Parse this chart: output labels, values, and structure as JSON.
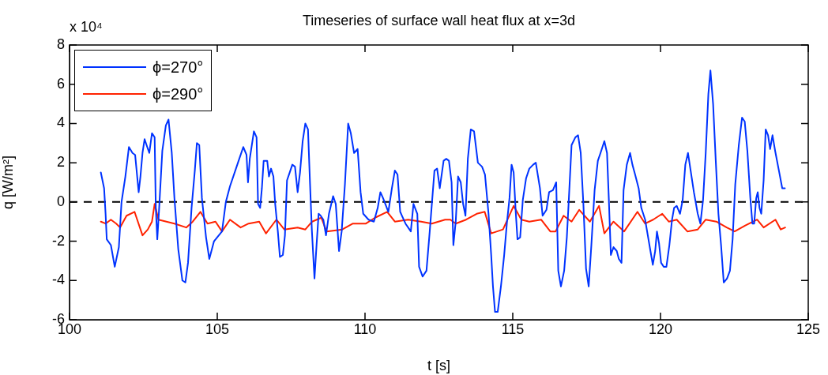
{
  "chart_data": {
    "type": "line",
    "title": "Timeseries of surface wall heat flux at x=3d",
    "xlabel": "t [s]",
    "ylabel": "q [W/m²]",
    "annotations": [
      "x 10⁴"
    ],
    "xlim": [
      100,
      125
    ],
    "xticks": [
      100,
      105,
      110,
      115,
      120,
      125
    ],
    "ylim": [
      -6,
      8
    ],
    "yticks": [
      -6,
      -4,
      -2,
      0,
      2,
      4,
      6,
      8
    ],
    "legend": "top left",
    "line_style": "solid",
    "marker": "none",
    "ref_lines": [
      {
        "axis": "y",
        "value": 0,
        "color": "#000000",
        "line_style": "dashed"
      }
    ],
    "series": [
      {
        "name": "ϕ=270°",
        "color": "#0033ff",
        "x": [
          101.06,
          101.17,
          101.22,
          101.26,
          101.4,
          101.53,
          101.67,
          101.76,
          101.89,
          102.01,
          102.13,
          102.22,
          102.34,
          102.4,
          102.47,
          102.54,
          102.63,
          102.7,
          102.79,
          102.88,
          102.92,
          102.97,
          103.03,
          103.14,
          103.26,
          103.35,
          103.46,
          103.55,
          103.68,
          103.82,
          103.92,
          104.01,
          104.13,
          104.24,
          104.31,
          104.39,
          104.48,
          104.62,
          104.73,
          104.89,
          105.16,
          105.29,
          105.43,
          105.7,
          105.88,
          105.99,
          106.04,
          106.1,
          106.24,
          106.33,
          106.38,
          106.45,
          106.51,
          106.57,
          106.69,
          106.75,
          106.82,
          106.9,
          106.96,
          107.05,
          107.12,
          107.22,
          107.29,
          107.36,
          107.45,
          107.54,
          107.63,
          107.72,
          107.8,
          107.89,
          107.98,
          108.07,
          108.14,
          108.2,
          108.29,
          108.36,
          108.43,
          108.5,
          108.59,
          108.68,
          108.78,
          108.92,
          109.01,
          109.07,
          109.12,
          109.21,
          109.32,
          109.43,
          109.52,
          109.63,
          109.75,
          109.85,
          109.94,
          110.12,
          110.3,
          110.43,
          110.52,
          110.61,
          110.79,
          110.91,
          111.01,
          111.1,
          111.19,
          111.37,
          111.55,
          111.64,
          111.77,
          111.83,
          111.95,
          112.08,
          112.19,
          112.35,
          112.44,
          112.53,
          112.66,
          112.75,
          112.84,
          112.93,
          112.99,
          113.07,
          113.15,
          113.24,
          113.32,
          113.4,
          113.48,
          113.58,
          113.69,
          113.82,
          113.96,
          114.06,
          114.18,
          114.27,
          114.33,
          114.4,
          114.49,
          114.6,
          114.71,
          114.8,
          114.89,
          114.96,
          115.03,
          115.1,
          115.16,
          115.25,
          115.34,
          115.45,
          115.56,
          115.69,
          115.78,
          115.92,
          116.01,
          116.14,
          116.23,
          116.36,
          116.47,
          116.54,
          116.63,
          116.74,
          116.83,
          116.9,
          116.99,
          117.12,
          117.21,
          117.3,
          117.39,
          117.48,
          117.57,
          117.66,
          117.77,
          117.88,
          117.97,
          118.1,
          118.19,
          118.25,
          118.32,
          118.41,
          118.52,
          118.59,
          118.68,
          118.75,
          118.86,
          118.97,
          119.05,
          119.14,
          119.26,
          119.35,
          119.48,
          119.57,
          119.66,
          119.74,
          119.82,
          119.88,
          119.95,
          120.02,
          120.11,
          120.2,
          120.3,
          120.39,
          120.46,
          120.55,
          120.66,
          120.75,
          120.84,
          120.93,
          121.01,
          121.13,
          121.26,
          121.35,
          121.44,
          121.53,
          121.62,
          121.69,
          121.78,
          121.87,
          121.96,
          122.05,
          122.14,
          122.25,
          122.35,
          122.44,
          122.53,
          122.65,
          122.76,
          122.85,
          122.94,
          123.04,
          123.11,
          123.17,
          123.24,
          123.29,
          123.35,
          123.41,
          123.49,
          123.56,
          123.64,
          123.71,
          123.79,
          123.88,
          124.02,
          124.12,
          124.21
        ],
        "values": [
          1.5,
          0.7,
          -0.6,
          -1.9,
          -2.2,
          -3.3,
          -2.3,
          0,
          1.3,
          2.8,
          2.5,
          2.4,
          0.5,
          1.3,
          2.5,
          3.2,
          2.8,
          2.5,
          3.5,
          3.3,
          -0.3,
          -1.9,
          -0.4,
          2.6,
          3.9,
          4.2,
          2.5,
          0.2,
          -2.4,
          -4.0,
          -4.1,
          -3.1,
          -0.3,
          1.6,
          3.0,
          2.9,
          0.2,
          -1.8,
          -2.9,
          -2.0,
          -1.5,
          0,
          0.8,
          2.0,
          2.8,
          2.4,
          1.0,
          2.2,
          3.6,
          3.3,
          -0.1,
          -0.3,
          0.7,
          2.1,
          2.1,
          1.3,
          1.7,
          1.3,
          -0.1,
          -1.5,
          -2.8,
          -2.7,
          -1.7,
          1.1,
          1.5,
          1.9,
          1.8,
          0.5,
          1.5,
          3.1,
          4.0,
          3.7,
          0.9,
          -1.4,
          -3.9,
          -2.2,
          -0.6,
          -0.7,
          -0.9,
          -1.7,
          -0.6,
          0.3,
          -0.1,
          -1.4,
          -2.5,
          -1.5,
          0.9,
          4.0,
          3.5,
          2.5,
          2.7,
          0.5,
          -0.6,
          -0.9,
          -1.0,
          -0.3,
          0.5,
          0.2,
          -0.5,
          0.7,
          1.6,
          1.4,
          -0.5,
          -1.1,
          -1.5,
          -0.1,
          -0.6,
          -3.3,
          -3.8,
          -3.5,
          -1.5,
          1.6,
          1.7,
          0.7,
          2.1,
          2.2,
          2.1,
          1.0,
          -2.2,
          -1.0,
          1.3,
          1.0,
          -0.1,
          -0.7,
          2.2,
          3.7,
          3.6,
          2.0,
          1.8,
          1.4,
          -0.6,
          -2.7,
          -4.3,
          -5.6,
          -5.6,
          -4.3,
          -2.7,
          -1.1,
          0.2,
          1.9,
          1.5,
          -0.5,
          -1.9,
          -1.8,
          0.1,
          1.2,
          1.7,
          1.9,
          2.0,
          0.7,
          -0.7,
          -0.4,
          0.5,
          0.6,
          1.0,
          -3.5,
          -4.3,
          -3.5,
          -1.8,
          0.2,
          2.9,
          3.3,
          3.4,
          2.5,
          -0.1,
          -3.4,
          -4.3,
          -2.2,
          0.6,
          2.1,
          2.5,
          3.1,
          2.5,
          0.2,
          -2.7,
          -2.3,
          -2.5,
          -2.9,
          -3.1,
          0.6,
          1.9,
          2.5,
          1.9,
          1.4,
          0.7,
          -0.3,
          -0.9,
          -1.7,
          -2.5,
          -3.2,
          -2.5,
          -1.5,
          -2.1,
          -3.1,
          -3.3,
          -3.3,
          -2.2,
          -0.9,
          -0.3,
          -0.2,
          -0.6,
          0.1,
          1.9,
          2.5,
          1.7,
          0.5,
          -0.6,
          -1.1,
          0.1,
          2.5,
          5.5,
          6.7,
          5.0,
          2.1,
          -0.6,
          -2.2,
          -4.1,
          -3.9,
          -3.5,
          -1.9,
          0.9,
          2.9,
          4.3,
          4.1,
          2.6,
          0.2,
          -1.1,
          -1.1,
          0.2,
          0.5,
          -0.3,
          -0.6,
          1.1,
          3.7,
          3.4,
          2.7,
          3.4,
          2.6,
          1.5,
          0.7,
          0.7
        ]
      },
      {
        "name": "ϕ=290°",
        "color": "#ff2200",
        "x": [
          101.06,
          101.22,
          101.4,
          101.58,
          101.71,
          101.93,
          102.2,
          102.47,
          102.65,
          102.79,
          102.88,
          103.01,
          103.28,
          103.55,
          103.95,
          104.17,
          104.43,
          104.67,
          104.94,
          105.16,
          105.43,
          105.79,
          106.06,
          106.42,
          106.65,
          107.0,
          107.27,
          107.72,
          107.98,
          108.21,
          108.52,
          108.7,
          109.23,
          109.59,
          110.03,
          110.34,
          110.75,
          111.01,
          111.46,
          111.9,
          112.26,
          112.71,
          112.89,
          113.07,
          113.42,
          113.78,
          114.05,
          114.27,
          114.67,
          115.03,
          115.29,
          115.56,
          115.96,
          116.27,
          116.45,
          116.72,
          116.99,
          117.25,
          117.61,
          117.92,
          118.1,
          118.41,
          118.77,
          119.22,
          119.48,
          119.75,
          120.06,
          120.28,
          120.55,
          120.91,
          121.26,
          121.53,
          121.89,
          122.24,
          122.51,
          122.87,
          123.27,
          123.49,
          123.89,
          124.07,
          124.22
        ],
        "values": [
          -1.0,
          -1.1,
          -0.9,
          -1.1,
          -1.3,
          -0.7,
          -0.5,
          -1.7,
          -1.4,
          -1.0,
          -0.1,
          -0.9,
          -1.0,
          -1.1,
          -1.3,
          -1.0,
          -0.5,
          -1.1,
          -1.0,
          -1.5,
          -0.9,
          -1.3,
          -1.1,
          -1.0,
          -1.6,
          -0.9,
          -1.4,
          -1.3,
          -1.4,
          -1.0,
          -0.8,
          -1.5,
          -1.4,
          -1.1,
          -1.1,
          -0.8,
          -0.5,
          -1.0,
          -0.9,
          -1.0,
          -1.1,
          -0.9,
          -0.9,
          -1.1,
          -0.9,
          -0.6,
          -0.5,
          -1.6,
          -1.4,
          -0.2,
          -0.9,
          -1.0,
          -0.9,
          -1.5,
          -1.5,
          -0.7,
          -1.0,
          -0.4,
          -1.0,
          -0.2,
          -1.6,
          -1.0,
          -1.5,
          -0.5,
          -1.1,
          -0.9,
          -0.6,
          -1.0,
          -0.9,
          -1.5,
          -1.4,
          -0.9,
          -1.0,
          -1.3,
          -1.5,
          -1.2,
          -0.9,
          -1.3,
          -0.9,
          -1.4,
          -1.3
        ]
      }
    ]
  }
}
